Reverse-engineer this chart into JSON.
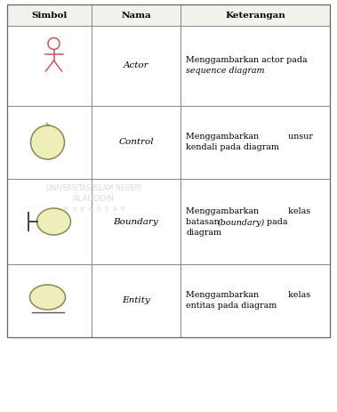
{
  "headers": [
    "Simbol",
    "Nama",
    "Keterangan"
  ],
  "rows": [
    {
      "nama": "Actor",
      "keter1": "Menggambarkan actor pada",
      "keter2": "sequence diagram",
      "keter2_italic": true
    },
    {
      "nama": "Control",
      "keter1": "Menggambarkan           unsur",
      "keter2": "kendali pada diagram",
      "keter2_italic": false
    },
    {
      "nama": "Boundary",
      "keter1": "Menggambarkan           kelas",
      "keter2": "batasan (boundary) pada",
      "keter3": "diagram",
      "keter2_italic": false
    },
    {
      "nama": "Entity",
      "keter1": "Menggambarkan           kelas",
      "keter2": "entitas pada diagram",
      "keter2_italic": false
    }
  ],
  "symbol_color": "#cc5555",
  "circle_fill": "#eeeebb",
  "circle_edge": "#888855",
  "fig_width": 3.79,
  "fig_height": 4.63,
  "dpi": 100
}
